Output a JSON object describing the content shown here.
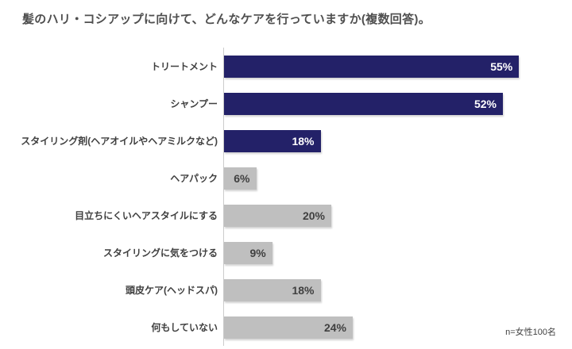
{
  "title": "髪のハリ・コシアップに向けて、どんなケアを行っていますか(複数回答)。",
  "footnote": "n=女性100名",
  "colors": {
    "highlight_bar": "#232168",
    "normal_bar": "#bfbfbf",
    "value_on_highlight": "#ffffff",
    "value_on_normal": "#404040",
    "title_text": "#4f4f4f",
    "label_text": "#404040",
    "axis_line": "#cccccc",
    "background": "#ffffff"
  },
  "chart_data": {
    "type": "bar",
    "orientation": "horizontal",
    "title": "髪のハリ・コシアップに向けて、どんなケアを行っていますか(複数回答)。",
    "categories": [
      "トリートメント",
      "シャンプー",
      "スタイリング剤(ヘアオイルやヘアミルクなど)",
      "ヘアパック",
      "目立ちにくいヘアスタイルにする",
      "スタイリングに気をつける",
      "頭皮ケア(ヘッドスパ)",
      "何もしていない"
    ],
    "values": [
      55,
      52,
      18,
      6,
      20,
      9,
      18,
      24
    ],
    "value_labels": [
      "55%",
      "52%",
      "18%",
      "6%",
      "20%",
      "9%",
      "18%",
      "24%"
    ],
    "highlighted": [
      true,
      true,
      true,
      false,
      false,
      false,
      false,
      false
    ],
    "xlabel": "",
    "ylabel": "",
    "xlim": [
      0,
      60
    ],
    "grid": false,
    "legend": false,
    "value_label_position": "inside-end",
    "sample_note": "n=女性100名"
  }
}
